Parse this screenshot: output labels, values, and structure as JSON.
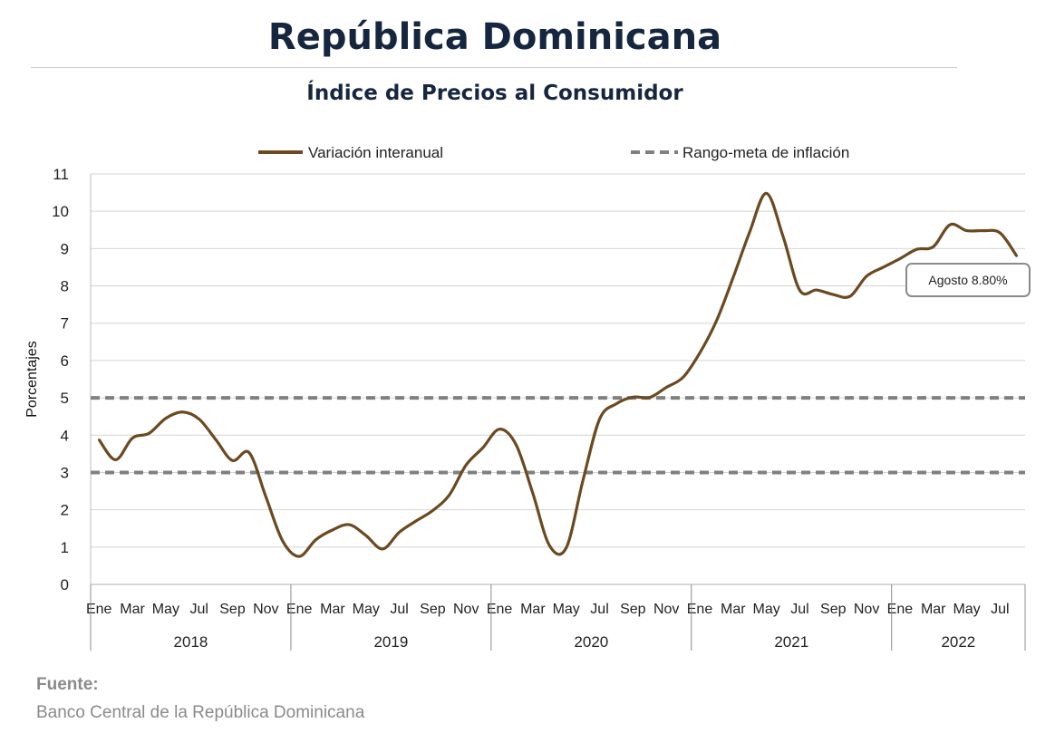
{
  "header": {
    "title": "República Dominicana",
    "subtitle": "Índice de Precios al Consumidor"
  },
  "source": {
    "label": "Fuente:",
    "text": "Banco Central de la República Dominicana"
  },
  "chart_data": {
    "type": "line",
    "ylabel": "Porcentajes",
    "ylim": [
      0,
      11
    ],
    "yticks": [
      0,
      1,
      2,
      3,
      4,
      5,
      6,
      7,
      8,
      9,
      10,
      11
    ],
    "grid": true,
    "legend_position": "top",
    "month_labels": [
      "Ene",
      "Mar",
      "May",
      "Jul",
      "Sep",
      "Nov"
    ],
    "years": [
      "2018",
      "2019",
      "2020",
      "2021",
      "2022"
    ],
    "x": [
      "2018-01",
      "2018-02",
      "2018-03",
      "2018-04",
      "2018-05",
      "2018-06",
      "2018-07",
      "2018-08",
      "2018-09",
      "2018-10",
      "2018-11",
      "2018-12",
      "2019-01",
      "2019-02",
      "2019-03",
      "2019-04",
      "2019-05",
      "2019-06",
      "2019-07",
      "2019-08",
      "2019-09",
      "2019-10",
      "2019-11",
      "2019-12",
      "2020-01",
      "2020-02",
      "2020-03",
      "2020-04",
      "2020-05",
      "2020-06",
      "2020-07",
      "2020-08",
      "2020-09",
      "2020-10",
      "2020-11",
      "2020-12",
      "2021-01",
      "2021-02",
      "2021-03",
      "2021-04",
      "2021-05",
      "2021-06",
      "2021-07",
      "2021-08",
      "2021-09",
      "2021-10",
      "2021-11",
      "2021-12",
      "2022-01",
      "2022-02",
      "2022-03",
      "2022-04",
      "2022-05",
      "2022-06",
      "2022-07",
      "2022-08"
    ],
    "series": [
      {
        "name": "Variación interanual",
        "color": "#6b4a21",
        "values": [
          3.88,
          3.34,
          3.92,
          4.05,
          4.45,
          4.62,
          4.43,
          3.88,
          3.32,
          3.53,
          2.35,
          1.17,
          0.75,
          1.2,
          1.46,
          1.6,
          1.31,
          0.95,
          1.4,
          1.7,
          1.98,
          2.4,
          3.2,
          3.66,
          4.16,
          3.74,
          2.44,
          1.04,
          0.98,
          2.78,
          4.43,
          4.84,
          5.02,
          5.01,
          5.28,
          5.55,
          6.2,
          7.06,
          8.22,
          9.45,
          10.48,
          9.32,
          7.88,
          7.89,
          7.77,
          7.72,
          8.26,
          8.5,
          8.73,
          8.98,
          9.05,
          9.64,
          9.48,
          9.48,
          9.42,
          8.8
        ]
      },
      {
        "name": "Rango-meta de inflación",
        "color": "#808080",
        "dashed": true,
        "bands": [
          3,
          5
        ]
      }
    ],
    "annotation": {
      "text": "Agosto 8.80%",
      "x": "2022-08",
      "y": 8.8
    }
  }
}
